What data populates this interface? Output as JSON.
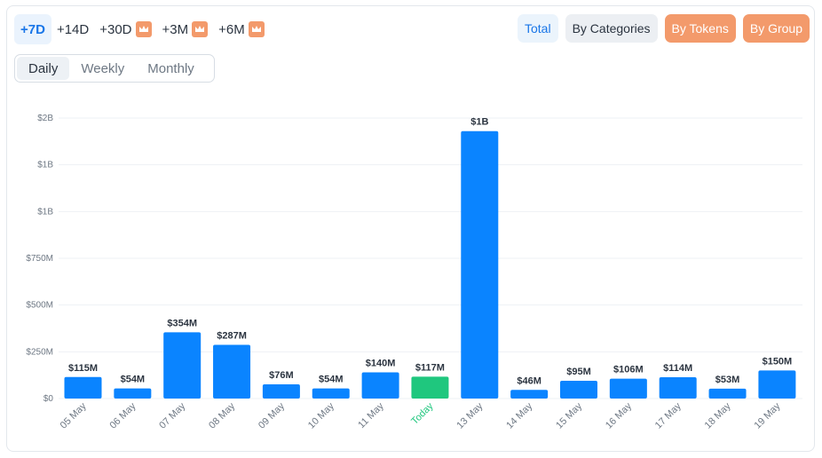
{
  "ranges": [
    {
      "label": "+7D",
      "active": true,
      "premium": false
    },
    {
      "label": "+14D",
      "active": false,
      "premium": false
    },
    {
      "label": "+30D",
      "active": false,
      "premium": true
    },
    {
      "label": "+3M",
      "active": false,
      "premium": true
    },
    {
      "label": "+6M",
      "active": false,
      "premium": true
    }
  ],
  "periods": [
    {
      "label": "Daily",
      "active": true
    },
    {
      "label": "Weekly",
      "active": false
    },
    {
      "label": "Monthly",
      "active": false
    }
  ],
  "views": [
    {
      "label": "Total",
      "style": "total"
    },
    {
      "label": "By Categories",
      "style": "cat"
    },
    {
      "label": "By Tokens",
      "style": "hot"
    },
    {
      "label": "By Group",
      "style": "hot"
    }
  ],
  "colors": {
    "bar": "#0a84ff",
    "today": "#1fc77e",
    "today_label": "#1fc77e",
    "grid": "#eef1f4"
  },
  "chart_data": {
    "type": "bar",
    "categories": [
      "05 May",
      "06 May",
      "07 May",
      "08 May",
      "09 May",
      "10 May",
      "11 May",
      "Today",
      "13 May",
      "14 May",
      "15 May",
      "16 May",
      "17 May",
      "18 May",
      "19 May"
    ],
    "values": [
      115000000,
      54000000,
      354000000,
      287000000,
      76000000,
      54000000,
      140000000,
      117000000,
      1430000000,
      46000000,
      95000000,
      106000000,
      114000000,
      53000000,
      150000000
    ],
    "data_labels": [
      "$115M",
      "$54M",
      "$354M",
      "$287M",
      "$76M",
      "$54M",
      "$140M",
      "$117M",
      "$1B",
      "$46M",
      "$95M",
      "$106M",
      "$114M",
      "$53M",
      "$150M"
    ],
    "y_ticks": [
      {
        "value": 0,
        "label": "$0"
      },
      {
        "value": 250000000,
        "label": "$250M"
      },
      {
        "value": 500000000,
        "label": "$500M"
      },
      {
        "value": 750000000,
        "label": "$750M"
      },
      {
        "value": 1000000000,
        "label": "$1B"
      },
      {
        "value": 1250000000,
        "label": "$1B"
      },
      {
        "value": 1500000000,
        "label": "$2B"
      }
    ],
    "ylim": [
      0,
      1500000000
    ],
    "highlight_category": "Today",
    "grid": true,
    "legend": "none"
  }
}
